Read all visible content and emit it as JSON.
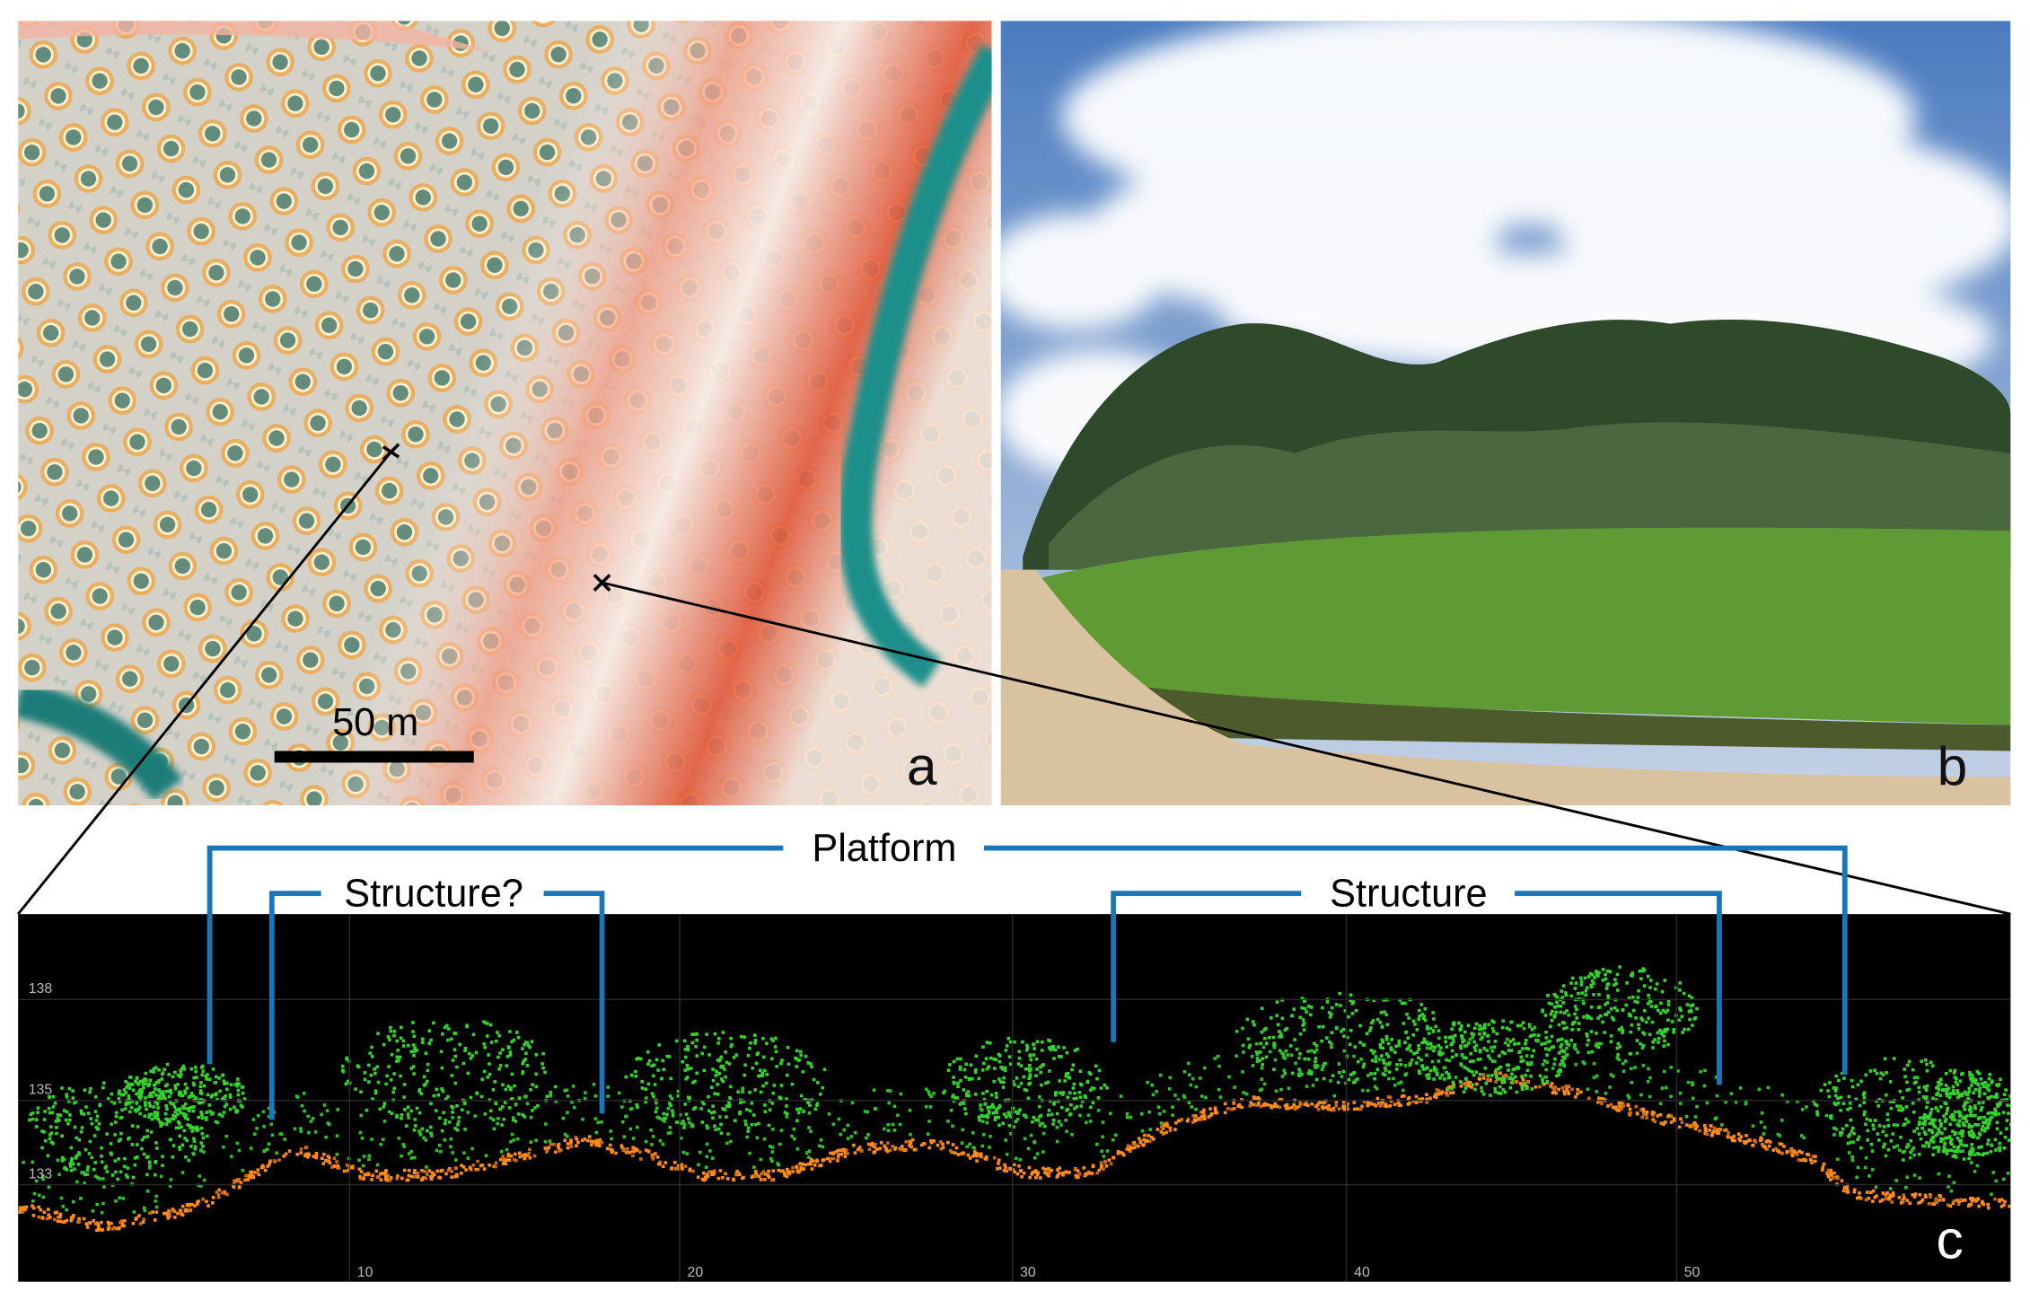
{
  "panels": {
    "a": {
      "label": "a",
      "scale_bar": "50 m"
    },
    "b": {
      "label": "b"
    },
    "c": {
      "label": "c",
      "annotations": {
        "platform": "Platform",
        "structure_uncertain": "Structure?",
        "structure": "Structure"
      },
      "yticks": [
        138,
        135,
        133
      ],
      "xticks": [
        10,
        20,
        30,
        40,
        50
      ]
    }
  }
}
